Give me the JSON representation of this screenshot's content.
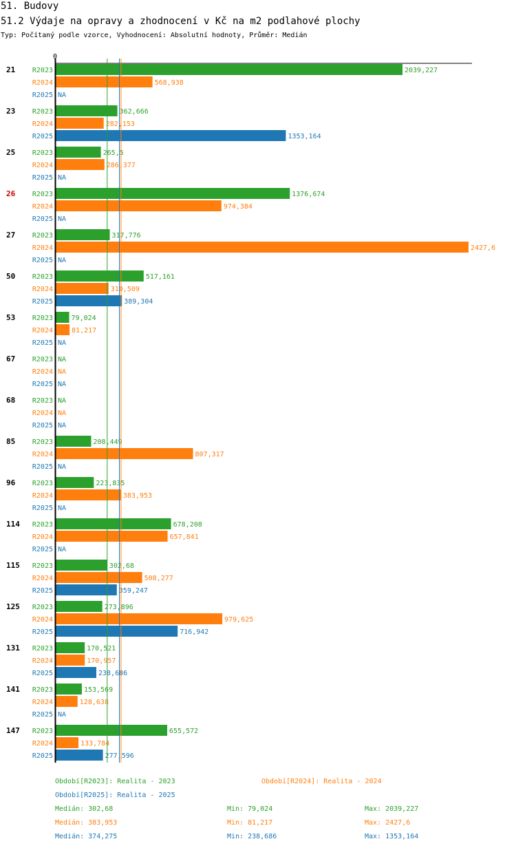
{
  "header": {
    "title": "51. Budovy",
    "subtitle": "51.2 Výdaje na opravy a zhodnocení v Kč na m2 podlahové plochy",
    "info": "Typ: Počítaný podle vzorce, Vyhodnocení: Absolutní hodnoty, Průměr: Medián"
  },
  "colors": {
    "R2023": "#2ca02c",
    "R2024": "#ff7f0e",
    "R2025": "#1f77b4",
    "highlight_group": "#cc0000",
    "axis": "#000000"
  },
  "chart_data": {
    "type": "bar",
    "orientation": "horizontal",
    "axis_zero_label": "0",
    "xlim": [
      0,
      2427.6
    ],
    "na_label": "NA",
    "series_names": [
      "R2023",
      "R2024",
      "R2025"
    ],
    "highlight_category": "26",
    "categories": [
      "21",
      "23",
      "25",
      "26",
      "27",
      "50",
      "53",
      "67",
      "68",
      "85",
      "96",
      "114",
      "115",
      "125",
      "131",
      "141",
      "147"
    ],
    "series": [
      {
        "name": "R2023",
        "values": [
          2039.227,
          362.666,
          265.5,
          1376.674,
          317.776,
          517.161,
          79.024,
          null,
          null,
          208.449,
          223.835,
          678.208,
          302.68,
          273.896,
          170.521,
          153.569,
          655.572
        ],
        "labels": [
          "2039,227",
          "362,666",
          "265,5",
          "1376,674",
          "317,776",
          "517,161",
          "79,024",
          "NA",
          "NA",
          "208,449",
          "223,835",
          "678,208",
          "302,68",
          "273,896",
          "170,521",
          "153,569",
          "655,572"
        ]
      },
      {
        "name": "R2024",
        "values": [
          568.938,
          282.153,
          286.377,
          974.384,
          2427.6,
          310.509,
          81.217,
          null,
          null,
          807.317,
          383.953,
          657.841,
          508.277,
          979.625,
          170.957,
          128.638,
          133.784
        ],
        "labels": [
          "568,938",
          "282,153",
          "286,377",
          "974,384",
          "2427,6",
          "310,509",
          "81,217",
          "NA",
          "NA",
          "807,317",
          "383,953",
          "657,841",
          "508,277",
          "979,625",
          "170,957",
          "128,638",
          "133,784"
        ]
      },
      {
        "name": "R2025",
        "values": [
          null,
          1353.164,
          null,
          null,
          null,
          389.304,
          null,
          null,
          null,
          null,
          null,
          null,
          359.247,
          716.942,
          238.686,
          null,
          277.596
        ],
        "labels": [
          "NA",
          "1353,164",
          "NA",
          "NA",
          "NA",
          "389,304",
          "NA",
          "NA",
          "NA",
          "NA",
          "NA",
          "NA",
          "359,247",
          "716,942",
          "238,686",
          "NA",
          "277,596"
        ]
      }
    ],
    "reference_lines": [
      {
        "series": "R2023",
        "value": 302.68
      },
      {
        "series": "R2024",
        "value": 383.953
      },
      {
        "series": "R2025",
        "value": 374.275
      }
    ]
  },
  "legend": {
    "period_2023": "Období[R2023]: Realita - 2023",
    "period_2024": "Období[R2024]: Realita - 2024",
    "period_2025": "Období[R2025]: Realita - 2025"
  },
  "stats": [
    {
      "series": "R2023",
      "median": "Medián: 302,68",
      "min": "Min: 79,024",
      "max": "Max: 2039,227"
    },
    {
      "series": "R2024",
      "median": "Medián: 383,953",
      "min": "Min: 81,217",
      "max": "Max: 2427,6"
    },
    {
      "series": "R2025",
      "median": "Medián: 374,275",
      "min": "Min: 238,686",
      "max": "Max: 1353,164"
    }
  ]
}
